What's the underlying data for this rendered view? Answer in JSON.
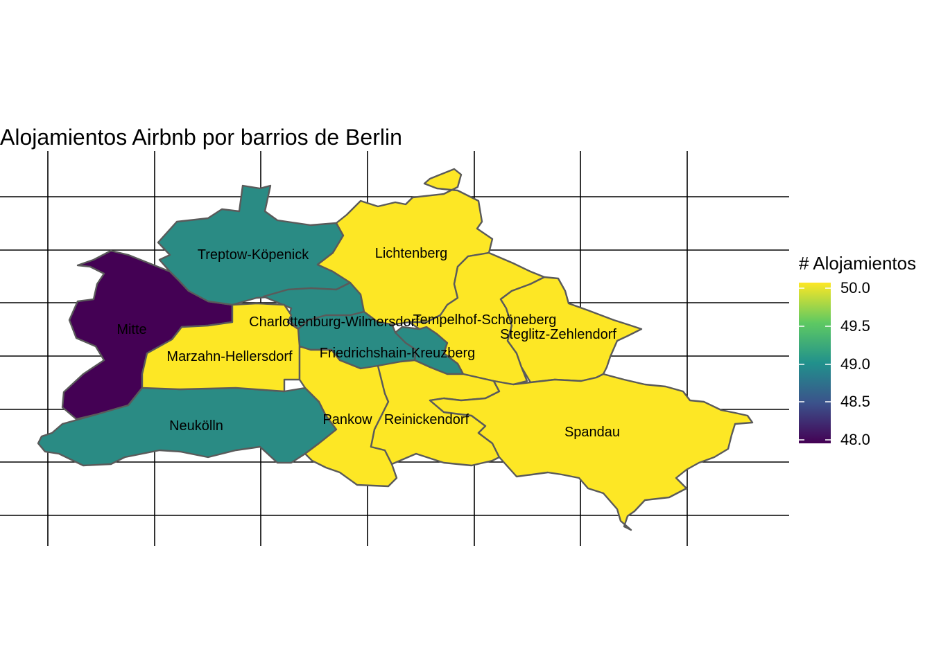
{
  "title": "Alojamientos Airbnb por barrios de Berlin",
  "legend": {
    "title": "# Alojamientos",
    "ticks": [
      "50.0",
      "49.5",
      "49.0",
      "48.5",
      "48.0"
    ],
    "range": [
      48,
      50
    ],
    "colorscale": [
      "#fde725",
      "#5ec962",
      "#21918c",
      "#3b528b",
      "#440154"
    ]
  },
  "districts": [
    {
      "name": "Mitte",
      "value": 48,
      "color": "#440154"
    },
    {
      "name": "Treptow-Köpenick",
      "value": 49,
      "color": "#2a8b84"
    },
    {
      "name": "Charlottenburg-Wilmersdorf",
      "value": 49,
      "color": "#2a8b84"
    },
    {
      "name": "Friedrichshain-Kreuzberg",
      "value": 49,
      "color": "#2a8b84"
    },
    {
      "name": "Neukölln",
      "value": 49,
      "color": "#2a8b84"
    },
    {
      "name": "Lichtenberg",
      "value": 50,
      "color": "#fde725"
    },
    {
      "name": "Tempelhof-Schöneberg",
      "value": 50,
      "color": "#fde725"
    },
    {
      "name": "Steglitz-Zehlendorf",
      "value": 50,
      "color": "#fde725"
    },
    {
      "name": "Marzahn-Hellersdorf",
      "value": 50,
      "color": "#fde725"
    },
    {
      "name": "Pankow",
      "value": 50,
      "color": "#fde725"
    },
    {
      "name": "Reinickendorf",
      "value": 50,
      "color": "#fde725"
    },
    {
      "name": "Spandau",
      "value": 50,
      "color": "#fde725"
    }
  ]
}
